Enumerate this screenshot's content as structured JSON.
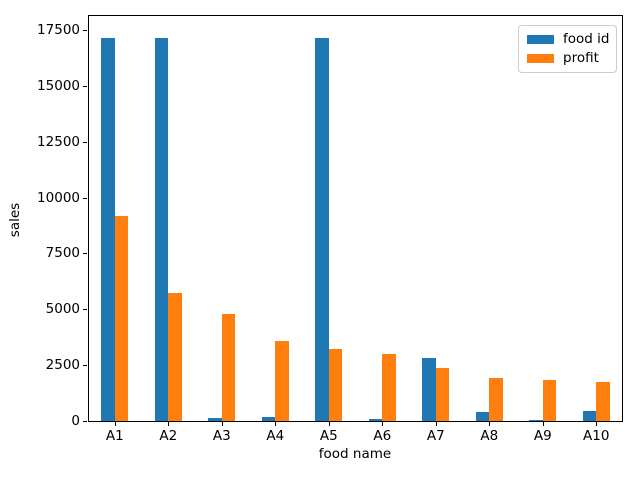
{
  "figure": {
    "background": "#ffffff",
    "text_color": "#000000"
  },
  "chart_data": {
    "type": "bar",
    "title": "",
    "xlabel": "food name",
    "ylabel": "sales",
    "categories": [
      "A1",
      "A2",
      "A3",
      "A4",
      "A5",
      "A6",
      "A7",
      "A8",
      "A9",
      "A10"
    ],
    "series": [
      {
        "name": "food id",
        "color": "#1f77b4",
        "values": [
          17130,
          17130,
          140,
          160,
          17130,
          80,
          2830,
          420,
          60,
          450
        ]
      },
      {
        "name": "profit",
        "color": "#ff7f0e",
        "values": [
          9180,
          5720,
          4790,
          3580,
          3220,
          3000,
          2360,
          1910,
          1820,
          1750
        ]
      }
    ],
    "yticks": [
      0,
      2500,
      5000,
      7500,
      10000,
      12500,
      15000,
      17500
    ],
    "ylim": [
      0,
      18171
    ],
    "grid": false,
    "legend_position": "upper right",
    "legend_border_color": "#cccccc"
  }
}
